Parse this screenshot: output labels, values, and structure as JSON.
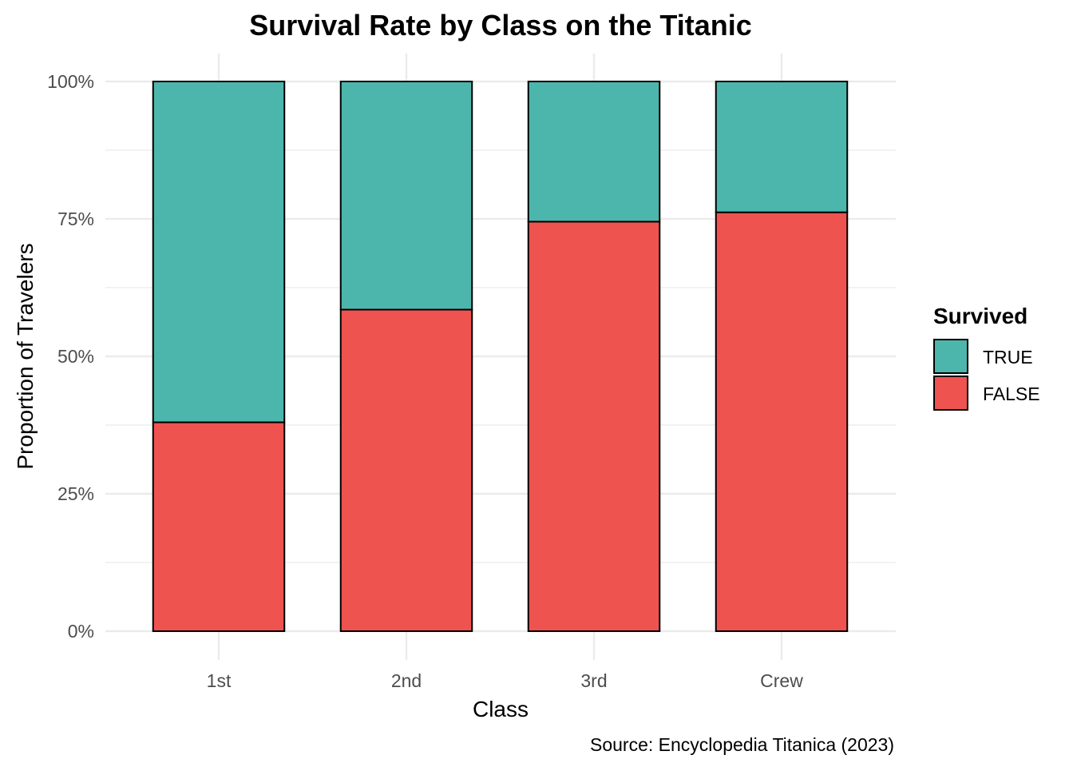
{
  "chart_data": {
    "type": "bar",
    "stacked": true,
    "title": "Survival Rate by Class on the Titanic",
    "xlabel": "Class",
    "ylabel": "Proportion of Travelers",
    "caption": "Source: Encyclopedia Titanica (2023)",
    "categories": [
      "1st",
      "2nd",
      "3rd",
      "Crew"
    ],
    "series": [
      {
        "name": "FALSE",
        "color": "#EF5350",
        "values": [
          0.38,
          0.585,
          0.745,
          0.762
        ]
      },
      {
        "name": "TRUE",
        "color": "#4DB6AC",
        "values": [
          0.62,
          0.415,
          0.255,
          0.238
        ]
      }
    ],
    "ylim": [
      0,
      1
    ],
    "yticks": [
      0,
      0.25,
      0.5,
      0.75,
      1
    ],
    "ytick_labels": [
      "0%",
      "25%",
      "50%",
      "75%",
      "100%"
    ],
    "grid": true,
    "legend": {
      "title": "Survived",
      "position": "right",
      "entries": [
        {
          "label": "TRUE",
          "color": "#4DB6AC"
        },
        {
          "label": "FALSE",
          "color": "#EF5350"
        }
      ]
    }
  }
}
